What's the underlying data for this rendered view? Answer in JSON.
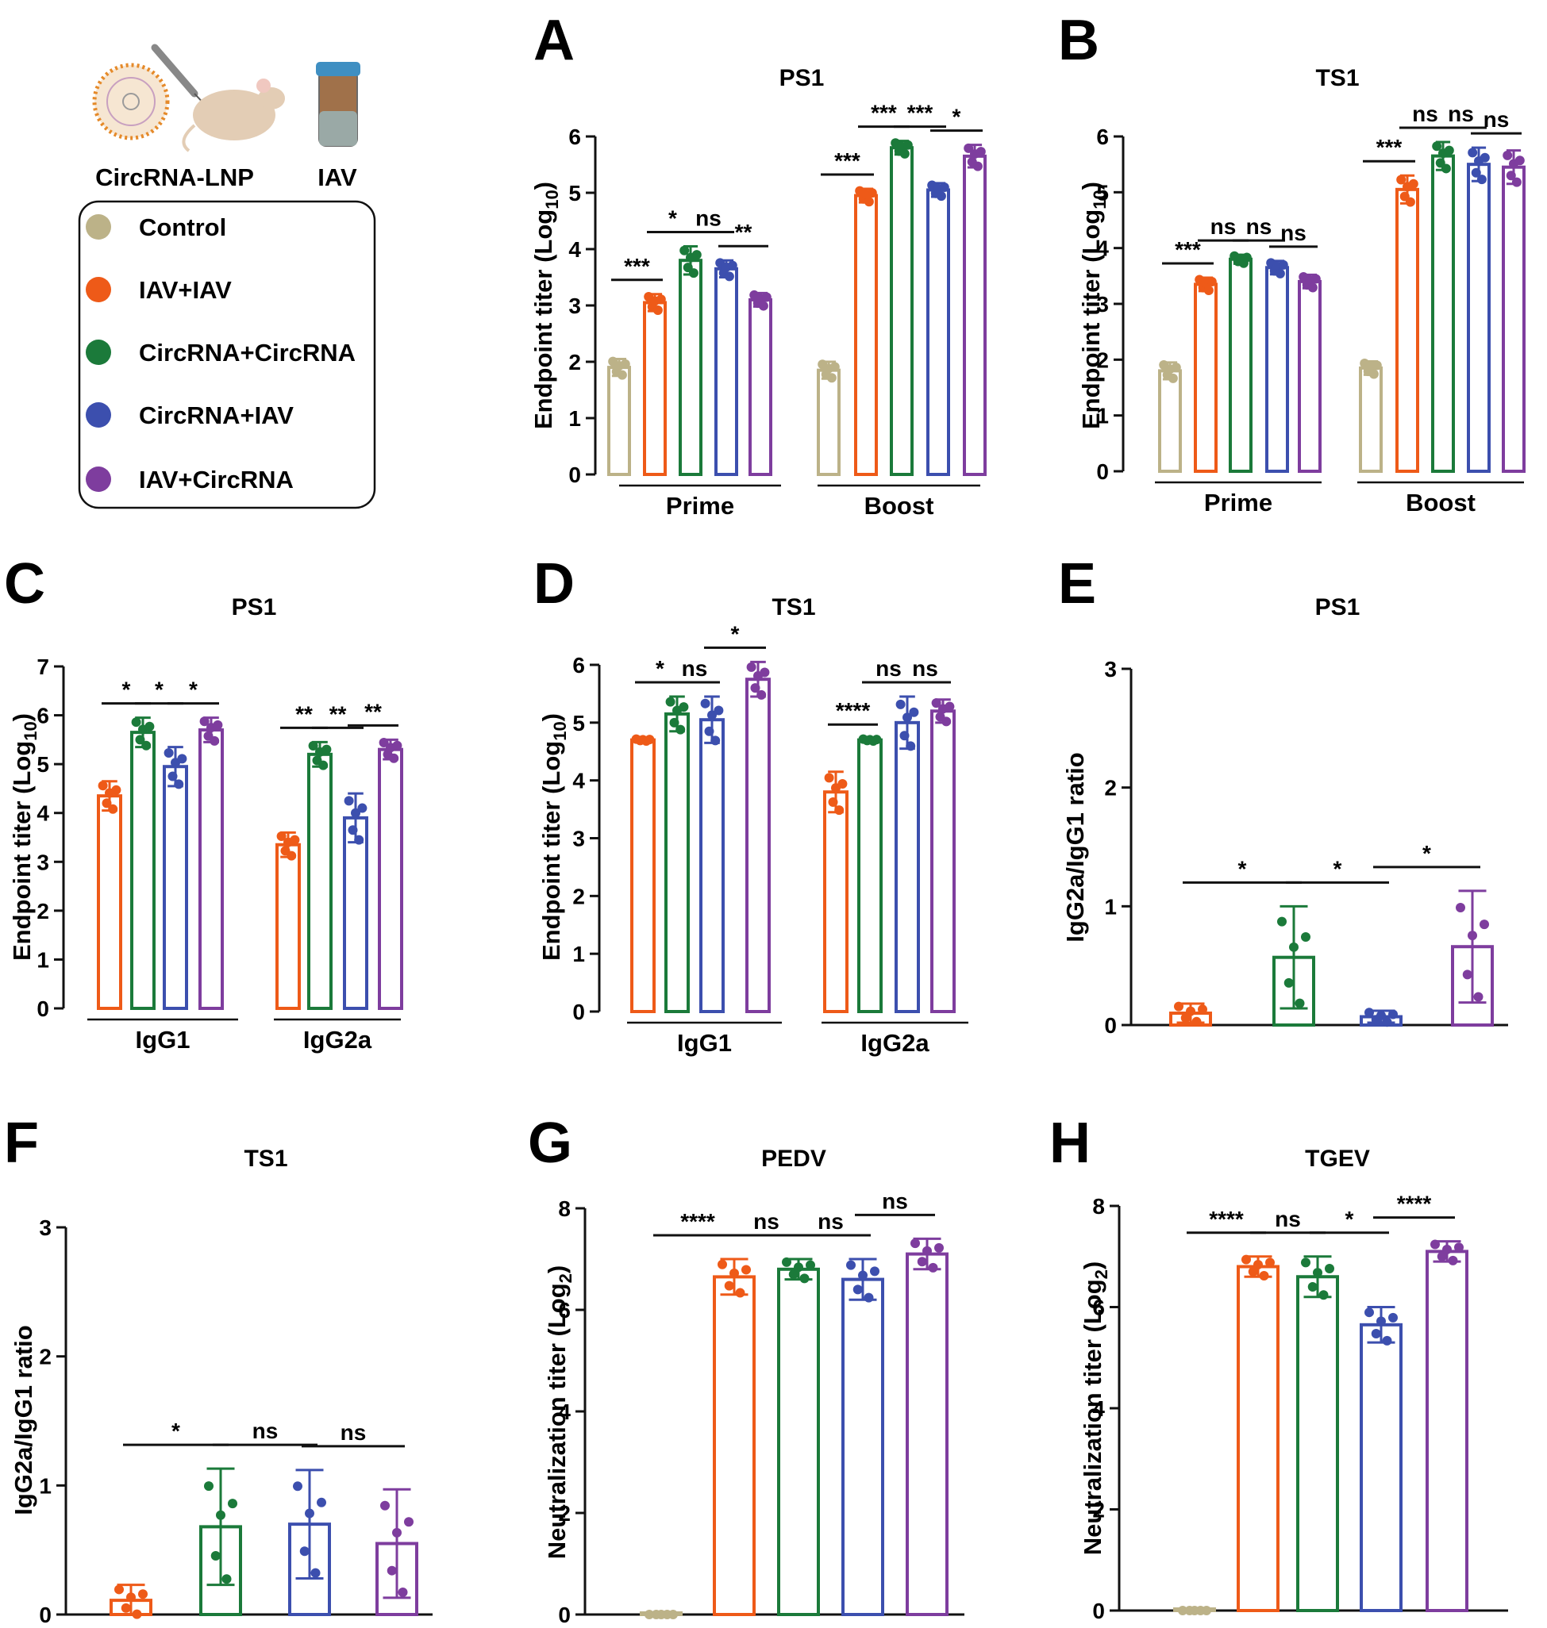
{
  "colors": {
    "Control": "#bcb288",
    "IAV+IAV": "#ee5a18",
    "CircRNA+CircRNA": "#1b7a3a",
    "CircRNA+IAV": "#3c4fae",
    "IAV+CircRNA": "#7e3d9e",
    "axis": "#111111"
  },
  "legend": {
    "illustration_labels": [
      "CircRNA-LNP",
      "IAV"
    ],
    "items": [
      {
        "label": "Control",
        "color": "#bcb288"
      },
      {
        "label": "IAV+IAV",
        "color": "#ee5a18"
      },
      {
        "label": "CircRNA+CircRNA",
        "color": "#1b7a3a"
      },
      {
        "label": "CircRNA+IAV",
        "color": "#3c4fae"
      },
      {
        "label": "IAV+CircRNA",
        "color": "#7e3d9e"
      }
    ]
  },
  "chart_data": [
    {
      "panel": "A",
      "type": "bar",
      "title": "PS1",
      "ylabel": "Endpoint titer (Log10)",
      "ylabel_main": "Endpoint titer (Log",
      "ylabel_sub": "10",
      "ylabel_end": ")",
      "ylim": [
        0,
        6
      ],
      "yticks": [
        0,
        1,
        2,
        3,
        4,
        5,
        6
      ],
      "groups": [
        "Prime",
        "Boost"
      ],
      "series_names": [
        "Control",
        "IAV+IAV",
        "CircRNA+CircRNA",
        "CircRNA+IAV",
        "IAV+CircRNA"
      ],
      "values": [
        [
          1.9,
          3.05,
          3.8,
          3.65,
          3.1
        ],
        [
          1.85,
          4.95,
          5.8,
          5.05,
          5.65
        ]
      ],
      "errors": [
        [
          0.15,
          0.15,
          0.25,
          0.15,
          0.12
        ],
        [
          0.15,
          0.12,
          0.12,
          0.12,
          0.2
        ]
      ],
      "significance": [
        {
          "g": 0,
          "a": 0,
          "b": 1,
          "label": "***"
        },
        {
          "g": 0,
          "a": 1,
          "b": 2,
          "label": "*"
        },
        {
          "g": 0,
          "a": 2,
          "b": 3,
          "label": "ns"
        },
        {
          "g": 0,
          "a": 3,
          "b": 4,
          "label": "**"
        },
        {
          "g": 1,
          "a": 0,
          "b": 1,
          "label": "***"
        },
        {
          "g": 1,
          "a": 1,
          "b": 2,
          "label": "***"
        },
        {
          "g": 1,
          "a": 2,
          "b": 3,
          "label": "***"
        },
        {
          "g": 1,
          "a": 3,
          "b": 4,
          "label": "*"
        }
      ]
    },
    {
      "panel": "B",
      "type": "bar",
      "title": "TS1",
      "ylabel": "Endpoint titer (Log10)",
      "ylabel_main": "Endpoint titer (Log",
      "ylabel_sub": "10",
      "ylabel_end": ")",
      "ylim": [
        0,
        6
      ],
      "yticks": [
        0,
        1,
        2,
        3,
        4,
        5,
        6
      ],
      "groups": [
        "Prime",
        "Boost"
      ],
      "series_names": [
        "Control",
        "IAV+IAV",
        "CircRNA+CircRNA",
        "CircRNA+IAV",
        "IAV+CircRNA"
      ],
      "values": [
        [
          1.8,
          3.35,
          3.8,
          3.65,
          3.4
        ],
        [
          1.85,
          5.05,
          5.65,
          5.5,
          5.45
        ]
      ],
      "errors": [
        [
          0.15,
          0.12,
          0.08,
          0.12,
          0.12
        ],
        [
          0.12,
          0.25,
          0.25,
          0.3,
          0.3
        ]
      ],
      "significance": [
        {
          "g": 0,
          "a": 0,
          "b": 1,
          "label": "***"
        },
        {
          "g": 0,
          "a": 1,
          "b": 2,
          "label": "ns"
        },
        {
          "g": 0,
          "a": 2,
          "b": 3,
          "label": "ns"
        },
        {
          "g": 0,
          "a": 3,
          "b": 4,
          "label": "ns"
        },
        {
          "g": 1,
          "a": 0,
          "b": 1,
          "label": "***"
        },
        {
          "g": 1,
          "a": 1,
          "b": 2,
          "label": "ns"
        },
        {
          "g": 1,
          "a": 2,
          "b": 3,
          "label": "ns"
        },
        {
          "g": 1,
          "a": 3,
          "b": 4,
          "label": "ns"
        }
      ]
    },
    {
      "panel": "C",
      "type": "bar",
      "title": "PS1",
      "ylabel": "Endpoint titer (Log10)",
      "ylabel_main": "Endpoint titer (Log",
      "ylabel_sub": "10",
      "ylabel_end": ")",
      "ylim": [
        0,
        7
      ],
      "yticks": [
        0,
        1,
        2,
        3,
        4,
        5,
        6,
        7
      ],
      "groups": [
        "IgG1",
        "IgG2a"
      ],
      "series_names": [
        "IAV+IAV",
        "CircRNA+CircRNA",
        "CircRNA+IAV",
        "IAV+CircRNA"
      ],
      "values": [
        [
          4.35,
          5.65,
          4.95,
          5.7
        ],
        [
          3.35,
          5.2,
          3.9,
          5.3
        ]
      ],
      "errors": [
        [
          0.3,
          0.3,
          0.4,
          0.25
        ],
        [
          0.25,
          0.25,
          0.5,
          0.2
        ]
      ],
      "significance": [
        {
          "g": 0,
          "a": 0,
          "b": 1,
          "label": "*"
        },
        {
          "g": 0,
          "a": 1,
          "b": 2,
          "label": "*"
        },
        {
          "g": 0,
          "a": 2,
          "b": 3,
          "label": "*"
        },
        {
          "g": 1,
          "a": 0,
          "b": 1,
          "label": "**"
        },
        {
          "g": 1,
          "a": 1,
          "b": 2,
          "label": "**"
        },
        {
          "g": 1,
          "a": 2,
          "b": 3,
          "label": "**"
        }
      ]
    },
    {
      "panel": "D",
      "type": "bar",
      "title": "TS1",
      "ylabel": "Endpoint titer (Log10)",
      "ylabel_main": "Endpoint titer (Log",
      "ylabel_sub": "10",
      "ylabel_end": ")",
      "ylim": [
        0,
        6
      ],
      "yticks": [
        0,
        1,
        2,
        3,
        4,
        5,
        6
      ],
      "groups": [
        "IgG1",
        "IgG2a"
      ],
      "series_names": [
        "IAV+IAV",
        "CircRNA+CircRNA",
        "CircRNA+IAV",
        "IAV+CircRNA"
      ],
      "values": [
        [
          4.7,
          5.15,
          5.05,
          5.75
        ],
        [
          3.8,
          4.7,
          5.0,
          5.2
        ]
      ],
      "errors": [
        [
          0.02,
          0.3,
          0.4,
          0.3
        ],
        [
          0.35,
          0.02,
          0.45,
          0.2
        ]
      ],
      "significance": [
        {
          "g": 0,
          "a": 0,
          "b": 1,
          "label": "*"
        },
        {
          "g": 0,
          "a": 1,
          "b": 2,
          "label": "ns"
        },
        {
          "g": 0,
          "a": 2,
          "b": 3,
          "label": "*"
        },
        {
          "g": 1,
          "a": 0,
          "b": 1,
          "label": "****"
        },
        {
          "g": 1,
          "a": 1,
          "b": 2,
          "label": "ns"
        },
        {
          "g": 1,
          "a": 2,
          "b": 3,
          "label": "ns"
        }
      ]
    },
    {
      "panel": "E",
      "type": "bar",
      "title": "PS1",
      "ylabel": "IgG2a/IgG1 ratio",
      "ylim": [
        0,
        3
      ],
      "yticks": [
        0,
        1,
        2,
        3
      ],
      "categories": [
        "IAV+IAV",
        "CircRNA+CircRNA",
        "CircRNA+IAV",
        "IAV+CircRNA"
      ],
      "values": [
        0.1,
        0.57,
        0.07,
        0.66
      ],
      "errors": [
        0.08,
        0.43,
        0.05,
        0.47
      ],
      "significance": [
        {
          "a": 0,
          "b": 1,
          "label": "*"
        },
        {
          "a": 1,
          "b": 2,
          "label": "*"
        },
        {
          "a": 2,
          "b": 3,
          "label": "*"
        }
      ]
    },
    {
      "panel": "F",
      "type": "bar",
      "title": "TS1",
      "ylabel": "IgG2a/IgG1 ratio",
      "ylim": [
        0,
        3
      ],
      "yticks": [
        0,
        1,
        2,
        3
      ],
      "categories": [
        "IAV+IAV",
        "CircRNA+CircRNA",
        "CircRNA+IAV",
        "IAV+CircRNA"
      ],
      "values": [
        0.11,
        0.68,
        0.7,
        0.55
      ],
      "errors": [
        0.12,
        0.45,
        0.42,
        0.42
      ],
      "significance": [
        {
          "a": 0,
          "b": 1,
          "label": "*"
        },
        {
          "a": 1,
          "b": 2,
          "label": "ns"
        },
        {
          "a": 2,
          "b": 3,
          "label": "ns"
        }
      ]
    },
    {
      "panel": "G",
      "type": "bar",
      "title": "PEDV",
      "ylabel": "Neutralization titer (Log2)",
      "ylabel_main": "Neutralization titer (Log",
      "ylabel_sub": "2",
      "ylabel_end": ")",
      "ylim": [
        0,
        8
      ],
      "yticks": [
        0,
        2,
        4,
        6,
        8
      ],
      "categories": [
        "Control",
        "IAV+IAV",
        "CircRNA+CircRNA",
        "CircRNA+IAV",
        "IAV+CircRNA"
      ],
      "values": [
        0,
        6.65,
        6.8,
        6.6,
        7.1
      ],
      "errors": [
        0,
        0.35,
        0.2,
        0.4,
        0.3
      ],
      "significance": [
        {
          "a": 0,
          "b": 1,
          "label": "****"
        },
        {
          "a": 1,
          "b": 2,
          "label": "ns"
        },
        {
          "a": 2,
          "b": 3,
          "label": "ns"
        },
        {
          "a": 3,
          "b": 4,
          "label": "ns"
        }
      ]
    },
    {
      "panel": "H",
      "type": "bar",
      "title": "TGEV",
      "ylabel": "Neutralization titer (Log2)",
      "ylabel_main": "Neutralization titer (Log",
      "ylabel_sub": "2",
      "ylabel_end": ")",
      "ylim": [
        0,
        8
      ],
      "yticks": [
        0,
        2,
        4,
        6,
        8
      ],
      "categories": [
        "Control",
        "IAV+IAV",
        "CircRNA+CircRNA",
        "CircRNA+IAV",
        "IAV+CircRNA"
      ],
      "values": [
        0,
        6.8,
        6.6,
        5.65,
        7.1
      ],
      "errors": [
        0,
        0.2,
        0.4,
        0.35,
        0.2
      ],
      "significance": [
        {
          "a": 0,
          "b": 1,
          "label": "****"
        },
        {
          "a": 1,
          "b": 2,
          "label": "ns"
        },
        {
          "a": 2,
          "b": 3,
          "label": "*"
        },
        {
          "a": 3,
          "b": 4,
          "label": "****"
        }
      ]
    }
  ]
}
